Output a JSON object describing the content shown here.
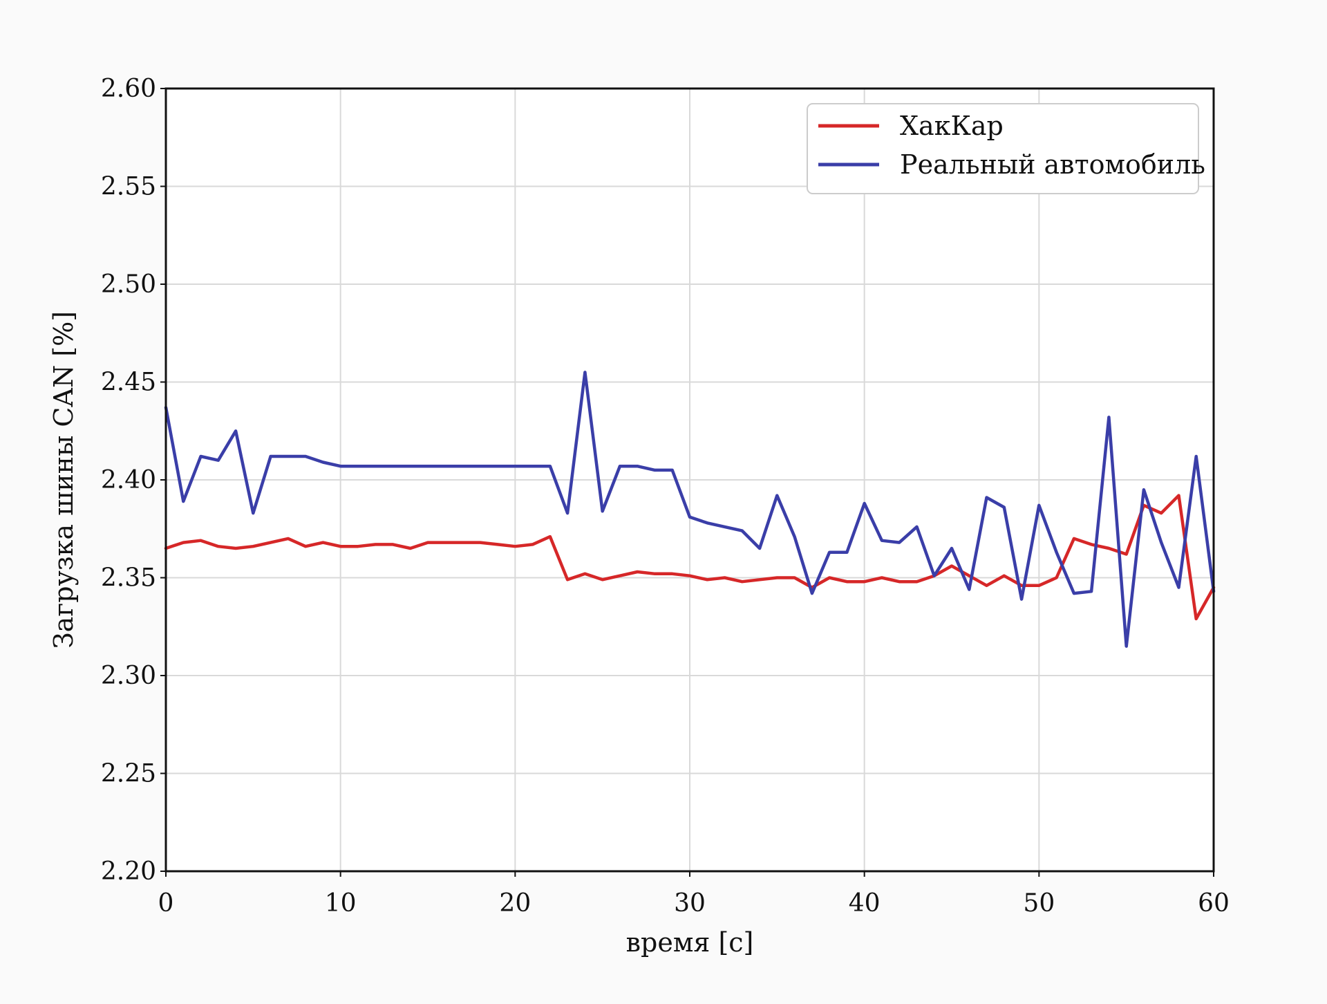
{
  "chart_data": {
    "type": "line",
    "title": "",
    "xlabel": "время [с]",
    "ylabel": "Загрузка шины CAN [%]",
    "xlim": [
      0,
      60
    ],
    "ylim": [
      2.2,
      2.6
    ],
    "xticks": [
      "0",
      "10",
      "20",
      "30",
      "40",
      "50",
      "60"
    ],
    "yticks": [
      "2.20",
      "2.25",
      "2.30",
      "2.35",
      "2.40",
      "2.45",
      "2.50",
      "2.55",
      "2.60"
    ],
    "grid": true,
    "legend_position": "top-right",
    "x": [
      0,
      1,
      2,
      3,
      4,
      5,
      6,
      7,
      8,
      9,
      10,
      11,
      12,
      13,
      14,
      15,
      16,
      17,
      18,
      19,
      20,
      21,
      22,
      23,
      24,
      25,
      26,
      27,
      28,
      29,
      30,
      31,
      32,
      33,
      34,
      35,
      36,
      37,
      38,
      39,
      40,
      41,
      42,
      43,
      44,
      45,
      46,
      47,
      48,
      49,
      50,
      51,
      52,
      53,
      54,
      55,
      56,
      57,
      58,
      59,
      60
    ],
    "series": [
      {
        "name": "ХакКар",
        "color": "#d62728",
        "values": [
          2.365,
          2.368,
          2.369,
          2.366,
          2.365,
          2.366,
          2.368,
          2.37,
          2.366,
          2.368,
          2.366,
          2.366,
          2.367,
          2.367,
          2.365,
          2.368,
          2.368,
          2.368,
          2.368,
          2.367,
          2.366,
          2.367,
          2.371,
          2.349,
          2.352,
          2.349,
          2.351,
          2.353,
          2.352,
          2.352,
          2.351,
          2.349,
          2.35,
          2.348,
          2.349,
          2.35,
          2.35,
          2.345,
          2.35,
          2.348,
          2.348,
          2.35,
          2.348,
          2.348,
          2.351,
          2.356,
          2.351,
          2.346,
          2.351,
          2.346,
          2.346,
          2.35,
          2.37,
          2.367,
          2.365,
          2.362,
          2.387,
          2.383,
          2.392,
          2.329,
          2.345
        ]
      },
      {
        "name": "Реальный автомобиль",
        "color": "#3a3ea8",
        "values": [
          2.437,
          2.389,
          2.412,
          2.41,
          2.425,
          2.383,
          2.412,
          2.412,
          2.412,
          2.409,
          2.407,
          2.407,
          2.407,
          2.407,
          2.407,
          2.407,
          2.407,
          2.407,
          2.407,
          2.407,
          2.407,
          2.407,
          2.407,
          2.383,
          2.455,
          2.384,
          2.407,
          2.407,
          2.405,
          2.405,
          2.381,
          2.378,
          2.376,
          2.374,
          2.365,
          2.392,
          2.371,
          2.342,
          2.363,
          2.363,
          2.388,
          2.369,
          2.368,
          2.376,
          2.351,
          2.365,
          2.344,
          2.391,
          2.386,
          2.339,
          2.387,
          2.363,
          2.342,
          2.343,
          2.432,
          2.315,
          2.395,
          2.368,
          2.345,
          2.412,
          2.343
        ]
      }
    ]
  }
}
